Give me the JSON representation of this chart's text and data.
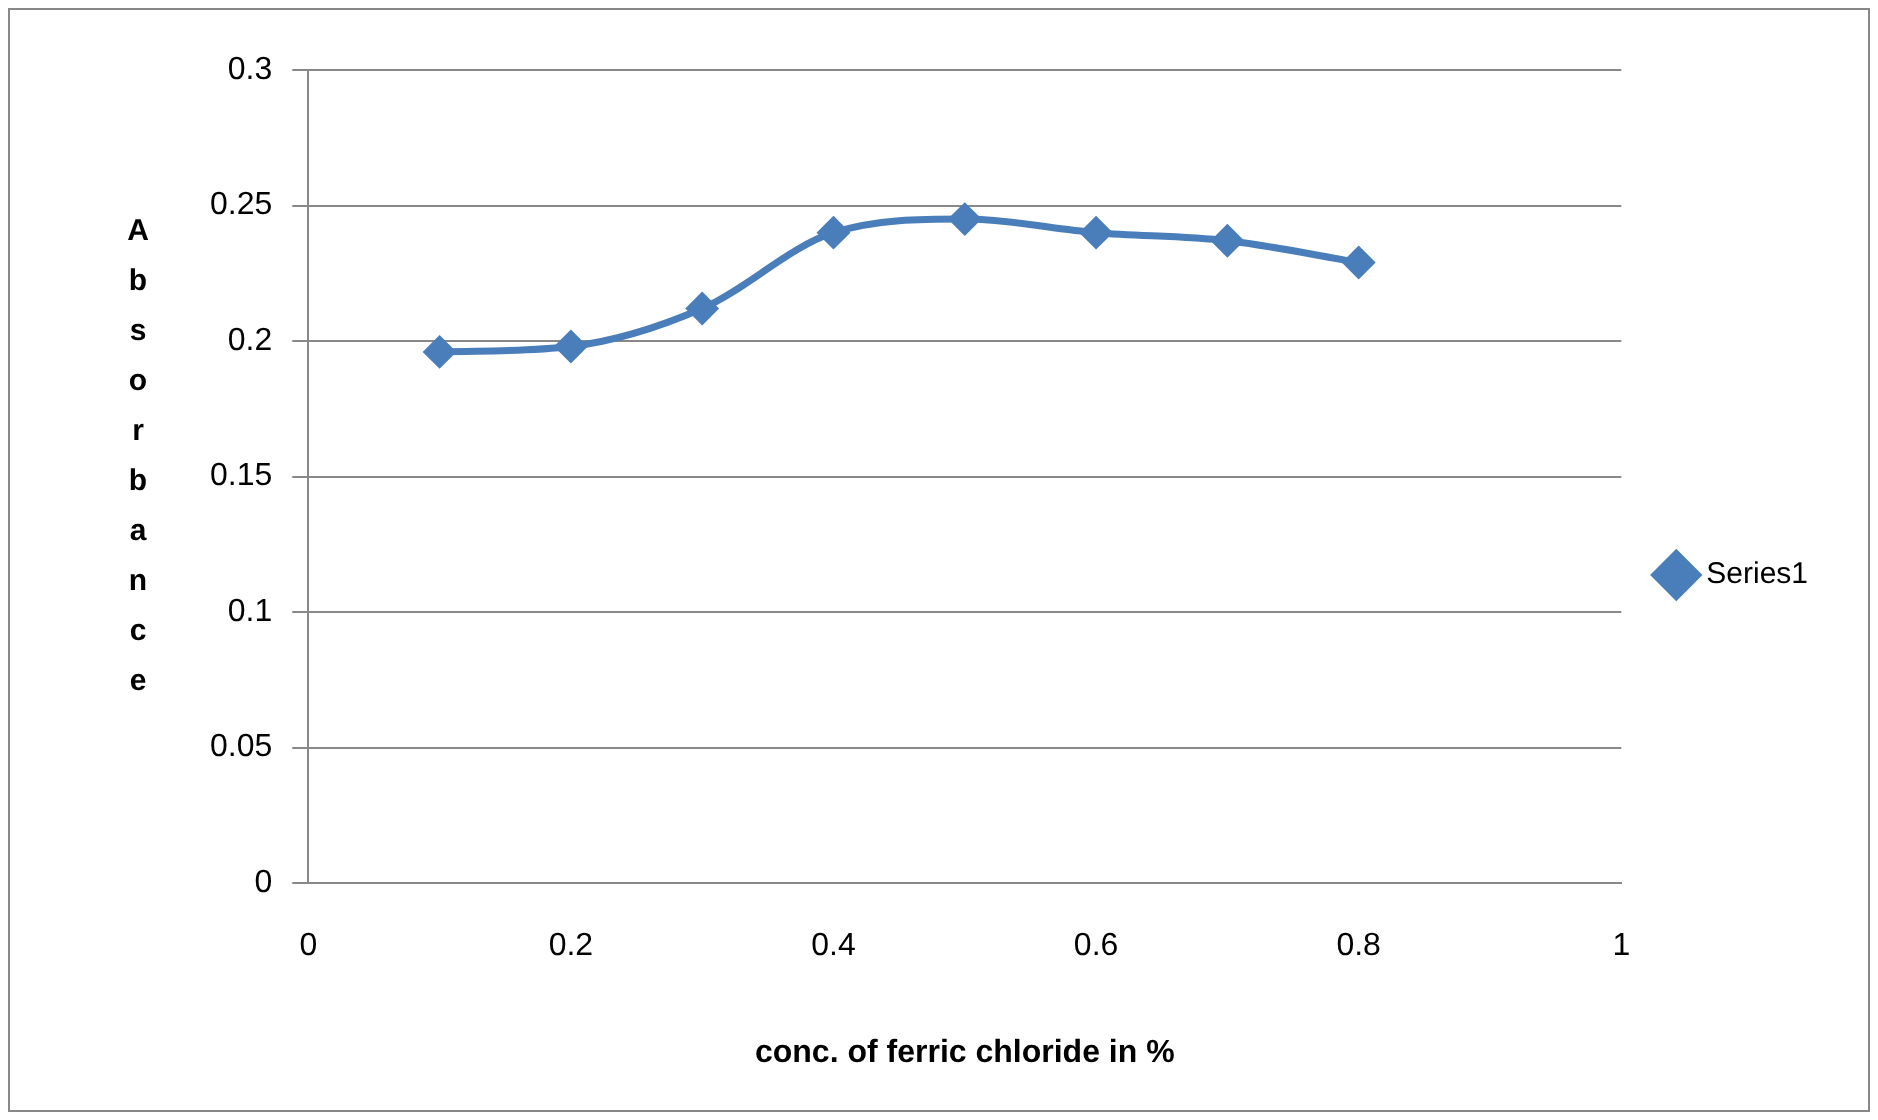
{
  "chart_data": {
    "type": "line",
    "xlabel": "conc. of ferric chloride in %",
    "ylabel": "Absorbance",
    "x": [
      0.1,
      0.2,
      0.3,
      0.4,
      0.5,
      0.6,
      0.7,
      0.8
    ],
    "series": [
      {
        "name": "Series1",
        "color": "#4a7ebb",
        "values": [
          0.196,
          0.198,
          0.212,
          0.24,
          0.245,
          0.24,
          0.237,
          0.229
        ]
      }
    ],
    "xlim": [
      0,
      1
    ],
    "xticks": [
      0,
      0.2,
      0.4,
      0.6,
      0.8,
      1
    ],
    "ylim": [
      0,
      0.3
    ],
    "yticks": [
      0,
      0.05,
      0.1,
      0.15,
      0.2,
      0.25,
      0.3
    ],
    "grid": "y",
    "legend": "right",
    "marker": "diamond",
    "line_style": "solid"
  }
}
